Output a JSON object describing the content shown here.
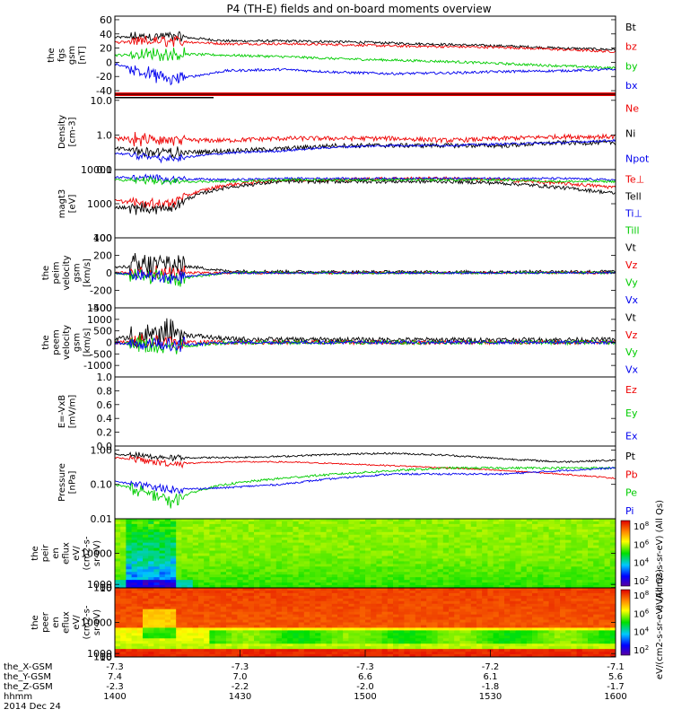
{
  "title": "P4 (TH-E) fields and on-board moments overview",
  "colors": {
    "black": "#000000",
    "red": "#ee0000",
    "green": "#00cc00",
    "blue": "#0000ee"
  },
  "chart_data": [
    {
      "type": "line",
      "id": "fgs",
      "ylabel": [
        "the",
        "fgs",
        "gsm",
        "[nT]"
      ],
      "ylim": [
        -45,
        65
      ],
      "yticks": [
        "60",
        "40",
        "20",
        "0",
        "-20",
        "-40"
      ],
      "yvals": [
        60,
        40,
        20,
        0,
        -20,
        -40
      ],
      "legend": [
        "Bt",
        "bz",
        "by",
        "bx"
      ],
      "series": [
        {
          "name": "Bt",
          "color": "black",
          "base": [
            35,
            37,
            30,
            30,
            29,
            27,
            25,
            23,
            20,
            18
          ],
          "noise": 1,
          "spike": 10
        },
        {
          "name": "bz",
          "color": "red",
          "base": [
            28,
            30,
            26,
            26,
            25,
            23,
            22,
            21,
            18,
            15
          ],
          "noise": 1,
          "spike": 12
        },
        {
          "name": "by",
          "color": "green",
          "base": [
            10,
            12,
            10,
            8,
            5,
            3,
            1,
            -2,
            -5,
            -8
          ],
          "noise": 1,
          "spike": 14
        },
        {
          "name": "bx",
          "color": "blue",
          "base": [
            -2,
            -25,
            -12,
            -10,
            -14,
            -16,
            -15,
            -13,
            -12,
            -10
          ],
          "noise": 1,
          "spike": 15
        }
      ]
    },
    {
      "type": "line",
      "id": "density",
      "log": true,
      "ylabel": [
        "Density",
        "[cm-3]"
      ],
      "ylim": [
        0.1,
        15
      ],
      "yticks": [
        "10.0",
        "1.0",
        "0.1"
      ],
      "yvals": [
        10,
        1,
        0.1
      ],
      "legend": [
        "Ne",
        "Ni",
        "Npot"
      ],
      "series": [
        {
          "name": "Ne",
          "color": "red",
          "base": [
            0.8,
            0.7,
            0.7,
            0.8,
            0.8,
            0.8,
            0.7,
            0.8,
            0.9,
            0.9
          ],
          "noise": 0.1,
          "spike": 0.5
        },
        {
          "name": "Ni",
          "color": "black",
          "base": [
            0.4,
            0.3,
            0.35,
            0.4,
            0.5,
            0.5,
            0.5,
            0.5,
            0.6,
            0.6
          ],
          "noise": 0.1,
          "spike": 0.5
        },
        {
          "name": "Npot",
          "color": "blue",
          "base": [
            0.3,
            0.2,
            0.3,
            0.35,
            0.45,
            0.5,
            0.5,
            0.55,
            0.6,
            0.7
          ],
          "noise": 0.05,
          "spike": 0.3
        }
      ]
    },
    {
      "type": "line",
      "id": "temp",
      "log": true,
      "ylabel": [
        "magt3",
        "[eV]"
      ],
      "ylim": [
        100,
        10000
      ],
      "yticks": [
        "10000",
        "1000",
        "100"
      ],
      "yvals": [
        10000,
        1000,
        100
      ],
      "legend": [
        "Te⊥",
        "Tell",
        "Ti⊥",
        "Till"
      ],
      "series": [
        {
          "name": "Te⊥",
          "color": "red",
          "base": [
            1200,
            1000,
            3500,
            5000,
            5000,
            5500,
            5500,
            5000,
            4000,
            3000
          ],
          "noise": 0.08,
          "spike": 0.4
        },
        {
          "name": "Tell",
          "color": "black",
          "base": [
            800,
            700,
            3000,
            4500,
            4500,
            4500,
            4500,
            4000,
            3000,
            2000
          ],
          "noise": 0.08,
          "spike": 0.4
        },
        {
          "name": "Ti⊥",
          "color": "blue",
          "base": [
            6000,
            5500,
            5000,
            5500,
            5500,
            5500,
            5500,
            5500,
            5500,
            5000
          ],
          "noise": 0.05,
          "spike": 0.3
        },
        {
          "name": "Till",
          "color": "green",
          "base": [
            5000,
            4500,
            4500,
            5000,
            5000,
            5000,
            5000,
            5000,
            4500,
            4500
          ],
          "noise": 0.05,
          "spike": 0.3
        }
      ]
    },
    {
      "type": "line",
      "id": "peim",
      "ylabel": [
        "the",
        "peim",
        "velocity",
        "gsm",
        "[km/s]"
      ],
      "ylim": [
        -400,
        400
      ],
      "yticks": [
        "400",
        "200",
        "0",
        "-200",
        "-400"
      ],
      "yvals": [
        400,
        200,
        0,
        -200,
        -400
      ],
      "legend": [
        "Vt",
        "Vz",
        "Vy",
        "Vx"
      ],
      "series": [
        {
          "name": "Vt",
          "color": "black",
          "base": [
            60,
            100,
            20,
            15,
            10,
            10,
            10,
            10,
            15,
            15
          ],
          "noise": 10,
          "spike": 250
        },
        {
          "name": "Vz",
          "color": "red",
          "base": [
            0,
            0,
            0,
            0,
            0,
            0,
            0,
            0,
            0,
            0
          ],
          "noise": 8,
          "spike": 120
        },
        {
          "name": "Vy",
          "color": "green",
          "base": [
            0,
            -80,
            0,
            0,
            0,
            0,
            0,
            0,
            0,
            0
          ],
          "noise": 8,
          "spike": 150
        },
        {
          "name": "Vx",
          "color": "blue",
          "base": [
            0,
            -60,
            0,
            0,
            0,
            0,
            0,
            0,
            0,
            0
          ],
          "noise": 6,
          "spike": 120
        }
      ]
    },
    {
      "type": "line",
      "id": "peem",
      "ylabel": [
        "the",
        "peem",
        "velocity",
        "gsm",
        "[km/s]"
      ],
      "ylim": [
        -1500,
        1500
      ],
      "yticks": [
        "1500",
        "1000",
        "500",
        "0",
        "-500",
        "-1000"
      ],
      "yvals": [
        1500,
        1000,
        500,
        0,
        -500,
        -1000
      ],
      "legend": [
        "Vt",
        "Vz",
        "Vy",
        "Vx"
      ],
      "series": [
        {
          "name": "Vt",
          "color": "black",
          "base": [
            150,
            400,
            150,
            120,
            120,
            110,
            110,
            110,
            110,
            110
          ],
          "noise": 60,
          "spike": 900
        },
        {
          "name": "Vz",
          "color": "red",
          "base": [
            0,
            0,
            0,
            0,
            0,
            0,
            0,
            0,
            0,
            0
          ],
          "noise": 50,
          "spike": 500
        },
        {
          "name": "Vy",
          "color": "green",
          "base": [
            0,
            -200,
            0,
            0,
            0,
            0,
            0,
            0,
            0,
            0
          ],
          "noise": 50,
          "spike": 700
        },
        {
          "name": "Vx",
          "color": "blue",
          "base": [
            0,
            -150,
            0,
            0,
            0,
            0,
            0,
            0,
            0,
            0
          ],
          "noise": 40,
          "spike": 500
        }
      ]
    },
    {
      "type": "line",
      "id": "efield",
      "ylabel": [
        "E=-VxB",
        "[mV/m]"
      ],
      "ylim": [
        0,
        1
      ],
      "yticks": [
        "1.0",
        "0.8",
        "0.6",
        "0.4",
        "0.2",
        "0.0"
      ],
      "yvals": [
        1,
        0.8,
        0.6,
        0.4,
        0.2,
        0
      ],
      "legend": [
        "Ez",
        "Ey",
        "Ex"
      ],
      "series": []
    },
    {
      "type": "line",
      "id": "pressure",
      "log": true,
      "ylabel": [
        "Pressure",
        "[nPa]"
      ],
      "ylim": [
        0.01,
        1.3
      ],
      "yticks": [
        "1.00",
        "0.10",
        "0.01"
      ],
      "yvals": [
        1,
        0.1,
        0.01
      ],
      "legend": [
        "Pt",
        "Pb",
        "Pe",
        "Pi"
      ],
      "series": [
        {
          "name": "Pt",
          "color": "black",
          "base": [
            0.75,
            0.6,
            0.6,
            0.65,
            0.75,
            0.8,
            0.7,
            0.55,
            0.45,
            0.5
          ],
          "noise": 0.04,
          "spike": 0.3
        },
        {
          "name": "Pb",
          "color": "red",
          "base": [
            0.6,
            0.4,
            0.45,
            0.45,
            0.4,
            0.35,
            0.3,
            0.25,
            0.2,
            0.15
          ],
          "noise": 0.03,
          "spike": 0.4
        },
        {
          "name": "Pe",
          "color": "green",
          "base": [
            0.1,
            0.03,
            0.1,
            0.15,
            0.2,
            0.25,
            0.3,
            0.3,
            0.3,
            0.3
          ],
          "noise": 0.05,
          "spike": 0.6
        },
        {
          "name": "Pi",
          "color": "blue",
          "base": [
            0.12,
            0.07,
            0.08,
            0.1,
            0.15,
            0.2,
            0.2,
            0.2,
            0.25,
            0.3
          ],
          "noise": 0.04,
          "spike": 0.4
        }
      ]
    },
    {
      "type": "heatmap",
      "id": "peir",
      "ylabel": [
        "the",
        "peir",
        "en",
        "eflux",
        "eV/",
        "(cm2-s-",
        "sr-eV)"
      ],
      "ylim": [
        10,
        20000
      ],
      "yticks": [
        "10000",
        "1000",
        "100",
        "10"
      ],
      "yvals": [
        10000,
        1000,
        100,
        10
      ],
      "colorbar_label": "eV/(cm2-s-sr-eV) (All Qs)",
      "colorbar_ticks": [
        "10^8",
        "10^6",
        "10^4",
        "10^2"
      ]
    },
    {
      "type": "heatmap",
      "id": "peer",
      "ylabel": [
        "the",
        "peer",
        "en",
        "eflux",
        "eV/",
        "(cm2-s-",
        "sr-eV)"
      ],
      "ylim": [
        10,
        20000
      ],
      "yticks": [
        "10000",
        "1000",
        "100",
        "10"
      ],
      "yvals": [
        10000,
        1000,
        100,
        10
      ],
      "colorbar_label": "eV/(cm2-s-sr-eV) (All Qs)",
      "colorbar_ticks": [
        "10^8",
        "10^6",
        "10^4",
        "10^2"
      ]
    }
  ],
  "x_axis": {
    "rows": [
      {
        "label": "the_X-GSM",
        "values": [
          "-7.3",
          "-7.3",
          "-7.3",
          "-7.2",
          "-7.1"
        ]
      },
      {
        "label": "the_Y-GSM",
        "values": [
          "7.4",
          "7.0",
          "6.6",
          "6.1",
          "5.6"
        ]
      },
      {
        "label": "the_Z-GSM",
        "values": [
          "-2.3",
          "-2.2",
          "-2.0",
          "-1.8",
          "-1.7"
        ]
      },
      {
        "label": "hhmm",
        "values": [
          "1400",
          "1430",
          "1500",
          "1530",
          "1600"
        ]
      }
    ],
    "date": "2014 Dec 24"
  }
}
